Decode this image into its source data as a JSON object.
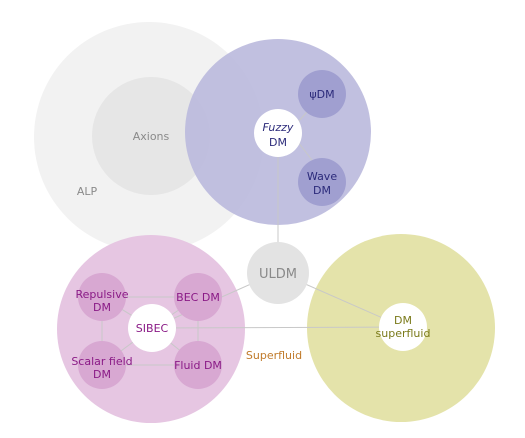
{
  "colors": {
    "background": "#ffffff",
    "alp": "#f2f2f2",
    "axions": "#e6e6e6",
    "fuzzy": "#bcbbdd",
    "fuzzy_sub": "#a09fd0",
    "sibec": "#e6c6e2",
    "sibec_sub": "#d8a8d2",
    "uldm": "#e3e3e3",
    "superfluid": "#e4e3aa",
    "connector": "#c8c8c8",
    "label_gray": "#8a8a8a",
    "label_navy": "#2b2a7a",
    "label_purple": "#8a1a86",
    "label_olive": "#7a7a1a",
    "label_orange": "#c07a2a"
  },
  "labels": {
    "alp": "ALP",
    "axions": "Axions",
    "fuzzy_line1": "Fuzzy",
    "fuzzy_line2": "DM",
    "psidm": "ψDM",
    "wave_line1": "Wave",
    "wave_line2": "DM",
    "uldm": "ULDM",
    "sibec": "SIBEC",
    "repulsive_line1": "Repulsive",
    "repulsive_line2": "DM",
    "becdm": "BEC DM",
    "scalar_line1": "Scalar field",
    "scalar_line2": "DM",
    "fluid": "Fluid DM",
    "superfluid_line1": "DM",
    "superfluid_line2": "superfluid",
    "superfluid_edge": "Superfluid"
  }
}
